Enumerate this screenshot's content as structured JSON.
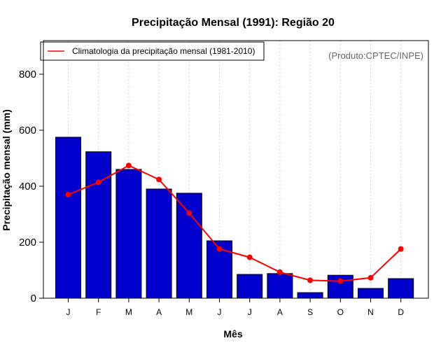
{
  "chart_data": {
    "type": "bar",
    "title": "Precipitação Mensal (1991): Região 20",
    "xlabel": "Mês",
    "ylabel": "Precipitação mensal (mm)",
    "ylim": [
      0,
      920
    ],
    "yticks": [
      0,
      200,
      400,
      600,
      800
    ],
    "categories": [
      "J",
      "F",
      "M",
      "A",
      "M",
      "J",
      "J",
      "A",
      "S",
      "O",
      "N",
      "D"
    ],
    "series": [
      {
        "name": "Precipitação mensal 1991",
        "kind": "bar",
        "color": "#0000CD",
        "values": [
          575,
          523,
          460,
          390,
          375,
          205,
          85,
          88,
          20,
          82,
          35,
          70
        ]
      },
      {
        "name": "Climatologia da precipitação mensal (1981-2010)",
        "kind": "line",
        "color": "#FF0000",
        "values": [
          370,
          414,
          474,
          424,
          304,
          176,
          146,
          93,
          64,
          61,
          73,
          176
        ]
      }
    ],
    "legend": {
      "entries": [
        "Climatologia da precipitação mensal (1981-2010)"
      ],
      "placement": "top-left"
    },
    "source_note": "(Produto:CPTEC/INPE)",
    "grid": "vertical dotted"
  }
}
